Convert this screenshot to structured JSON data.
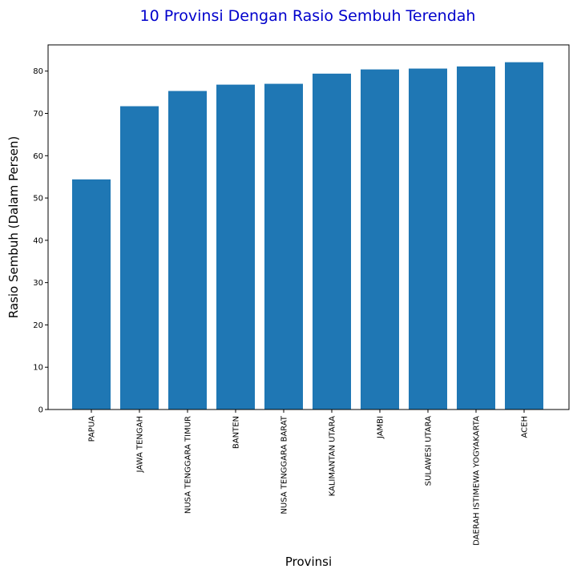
{
  "chart_data": {
    "type": "bar",
    "title": "10 Provinsi Dengan Rasio Sembuh Terendah",
    "xlabel": "Provinsi",
    "ylabel": "Rasio Sembuh (Dalam Persen)",
    "categories": [
      "PAPUA",
      "JAWA TENGAH",
      "NUSA TENGGARA TIMUR",
      "BANTEN",
      "NUSA TENGGARA BARAT",
      "KALIMANTAN UTARA",
      "JAMBI",
      "SULAWESI UTARA",
      "DAERAH ISTIMEWA YOGYAKARTA",
      "ACEH"
    ],
    "values": [
      54.4,
      71.7,
      75.3,
      76.8,
      77.0,
      79.4,
      80.4,
      80.6,
      81.1,
      82.1
    ],
    "yticks": [
      0,
      10,
      20,
      30,
      40,
      50,
      60,
      70,
      80
    ],
    "ylim": [
      0,
      86.2
    ],
    "grid": false,
    "bar_color": "#1f77b4",
    "title_color": "#0000cc"
  }
}
